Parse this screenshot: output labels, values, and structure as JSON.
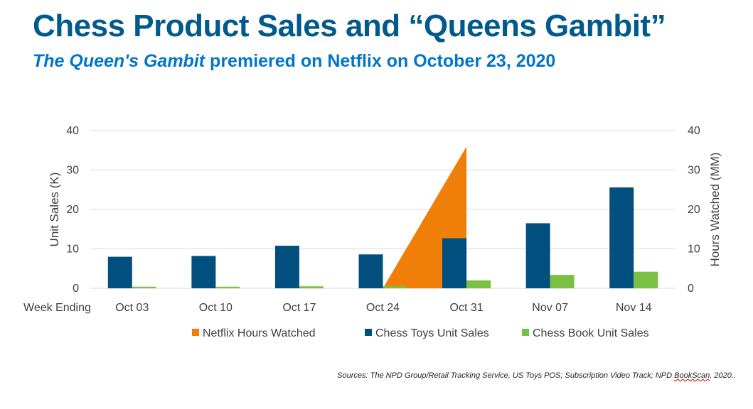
{
  "header": {
    "title": "Chess Product Sales and “Queens Gambit”",
    "subtitle_italic": "The Queen's Gambit",
    "subtitle_rest": " premiered on Netflix on October 23, 2020"
  },
  "footer": {
    "source_main": "Sources: The NPD Group/Retail Tracking Service, US Toys POS; Subscription Video Track;  NPD ",
    "source_underlined": "BookScan",
    "source_end": ", 2020.."
  },
  "colors": {
    "netflix": "#F07F09",
    "toys": "#004F7E",
    "books": "#7AC143",
    "grid": "#D9D9D9",
    "title": "#005A8C",
    "subtitle": "#0075C9"
  },
  "chart_data": {
    "type": "bar",
    "x_label_prefix": "Week Ending",
    "categories": [
      "Oct 03",
      "Oct 10",
      "Oct 17",
      "Oct 24",
      "Oct 31",
      "Nov 07",
      "Nov 14"
    ],
    "ylabel": "Unit Sales (K)",
    "y2label": "Hours Watched (MM)",
    "ylim": [
      0,
      40
    ],
    "y2lim": [
      0,
      40
    ],
    "yticks": [
      0,
      10,
      20,
      30,
      40
    ],
    "y2ticks": [
      0,
      10,
      20,
      30,
      40
    ],
    "grid": true,
    "legend_position": "bottom",
    "series": [
      {
        "name": "Netflix Hours Watched",
        "type": "area",
        "axis": "right",
        "values": [
          null,
          null,
          null,
          0,
          36,
          null,
          null
        ]
      },
      {
        "name": "Chess Toys Unit Sales",
        "type": "bar",
        "axis": "left",
        "values": [
          8,
          8.2,
          10.8,
          8.6,
          12.7,
          16.5,
          25.6
        ]
      },
      {
        "name": "Chess Book Unit Sales",
        "type": "bar",
        "axis": "left",
        "values": [
          0.4,
          0.4,
          0.5,
          0.5,
          2.0,
          3.4,
          4.2
        ]
      }
    ]
  }
}
